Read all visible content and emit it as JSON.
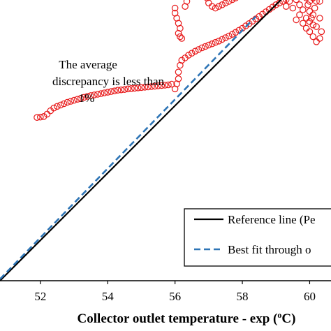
{
  "chart_data": {
    "type": "scatter",
    "xlabel": "Collector outlet temperature - exp (oC)",
    "xlabel_parts": {
      "before": "Collector outlet temperature - exp (",
      "sup": "o",
      "after": "C)"
    },
    "xlim": [
      50.8,
      60.4
    ],
    "ylim": [
      50.8,
      60.4
    ],
    "xticks": [
      "52",
      "54",
      "56",
      "58",
      "60"
    ],
    "xtick_values": [
      52,
      54,
      56,
      58,
      60
    ],
    "annotation": [
      "The average",
      "discrepancy is less than",
      "1%"
    ],
    "legend": {
      "placement": "bottom-right",
      "entries": [
        {
          "label": "Reference line (Pe",
          "style": "solid",
          "color": "#000000"
        },
        {
          "label": "Best fit through o",
          "style": "dashed",
          "color": "#2e75b6"
        }
      ]
    },
    "reference_line": {
      "x": [
        50.8,
        60.4
      ],
      "y": [
        50.8,
        60.4
      ],
      "color": "#000000"
    },
    "best_fit_line": {
      "x": [
        50.8,
        58.4
      ],
      "y": [
        50.85,
        58.65
      ],
      "color": "#2e75b6"
    },
    "marker_color": "#e8191a",
    "series": [
      {
        "points": [
          [
            51.9,
            55.65
          ],
          [
            52.0,
            55.66
          ],
          [
            52.1,
            55.68
          ],
          [
            52.2,
            55.75
          ],
          [
            52.3,
            55.85
          ],
          [
            52.4,
            55.93
          ],
          [
            52.5,
            55.98
          ],
          [
            52.6,
            56.02
          ],
          [
            52.7,
            56.06
          ],
          [
            52.8,
            56.1
          ],
          [
            52.9,
            56.13
          ],
          [
            53.0,
            56.16
          ],
          [
            53.1,
            56.19
          ],
          [
            53.2,
            56.22
          ],
          [
            53.3,
            56.25
          ],
          [
            53.4,
            56.28
          ],
          [
            53.5,
            56.3
          ],
          [
            53.6,
            56.32
          ],
          [
            53.7,
            56.34
          ],
          [
            53.8,
            56.36
          ],
          [
            53.9,
            56.38
          ],
          [
            54.0,
            56.4
          ],
          [
            54.1,
            56.42
          ],
          [
            54.2,
            56.44
          ],
          [
            54.3,
            56.46
          ],
          [
            54.4,
            56.47
          ],
          [
            54.5,
            56.48
          ],
          [
            54.6,
            56.5
          ],
          [
            54.7,
            56.51
          ],
          [
            54.8,
            56.52
          ],
          [
            54.9,
            56.53
          ],
          [
            55.0,
            56.54
          ],
          [
            55.1,
            56.55
          ],
          [
            55.2,
            56.56
          ],
          [
            55.3,
            56.57
          ],
          [
            55.4,
            56.58
          ],
          [
            55.5,
            56.59
          ],
          [
            55.6,
            56.6
          ],
          [
            55.7,
            56.61
          ],
          [
            55.8,
            56.62
          ],
          [
            55.9,
            56.64
          ],
          [
            56.0,
            56.5
          ],
          [
            56.05,
            56.65
          ],
          [
            56.1,
            56.8
          ],
          [
            56.1,
            57.0
          ],
          [
            56.15,
            57.2
          ],
          [
            56.2,
            57.35
          ],
          [
            56.3,
            57.42
          ],
          [
            56.4,
            57.5
          ],
          [
            56.5,
            57.56
          ],
          [
            56.6,
            57.62
          ],
          [
            56.7,
            57.67
          ],
          [
            56.8,
            57.72
          ],
          [
            56.9,
            57.76
          ],
          [
            57.0,
            57.8
          ],
          [
            57.1,
            57.84
          ],
          [
            57.2,
            57.88
          ],
          [
            57.3,
            57.92
          ],
          [
            57.4,
            57.97
          ],
          [
            57.5,
            58.02
          ],
          [
            57.6,
            58.07
          ],
          [
            57.7,
            58.12
          ],
          [
            57.8,
            58.18
          ],
          [
            57.9,
            58.24
          ],
          [
            58.0,
            58.3
          ],
          [
            58.1,
            58.37
          ],
          [
            58.2,
            58.44
          ],
          [
            58.3,
            58.51
          ],
          [
            58.4,
            58.58
          ],
          [
            58.5,
            58.65
          ],
          [
            58.6,
            58.72
          ],
          [
            58.7,
            58.79
          ],
          [
            58.8,
            58.86
          ],
          [
            58.9,
            58.93
          ],
          [
            59.0,
            59.0
          ],
          [
            59.1,
            59.05
          ],
          [
            59.2,
            59.1
          ],
          [
            59.3,
            59.15
          ],
          [
            56.0,
            58.9
          ],
          [
            56.0,
            58.75
          ],
          [
            56.05,
            58.6
          ],
          [
            56.1,
            58.45
          ],
          [
            56.15,
            58.3
          ],
          [
            56.1,
            58.15
          ],
          [
            56.15,
            58.05
          ],
          [
            56.2,
            58.0
          ],
          [
            56.3,
            58.95
          ],
          [
            56.35,
            59.1
          ],
          [
            56.4,
            59.25
          ],
          [
            56.45,
            59.4
          ],
          [
            56.5,
            59.55
          ],
          [
            56.55,
            59.7
          ],
          [
            56.6,
            59.85
          ],
          [
            56.65,
            60.0
          ],
          [
            56.7,
            60.1
          ],
          [
            56.7,
            59.95
          ],
          [
            56.75,
            59.8
          ],
          [
            56.8,
            59.65
          ],
          [
            56.85,
            59.5
          ],
          [
            56.9,
            59.35
          ],
          [
            56.95,
            59.2
          ],
          [
            57.0,
            59.05
          ],
          [
            57.1,
            58.95
          ],
          [
            57.2,
            58.9
          ],
          [
            57.3,
            58.95
          ],
          [
            57.4,
            59.0
          ],
          [
            57.5,
            59.05
          ],
          [
            57.6,
            59.1
          ],
          [
            57.7,
            59.15
          ],
          [
            57.8,
            59.2
          ],
          [
            57.9,
            59.25
          ],
          [
            58.0,
            59.3
          ],
          [
            58.1,
            59.38
          ],
          [
            58.2,
            59.45
          ],
          [
            58.3,
            59.5
          ],
          [
            58.4,
            59.55
          ],
          [
            58.5,
            59.6
          ],
          [
            58.6,
            59.65
          ],
          [
            58.7,
            59.7
          ],
          [
            58.8,
            59.72
          ],
          [
            58.9,
            59.74
          ],
          [
            59.0,
            59.75
          ],
          [
            59.0,
            59.55
          ],
          [
            59.05,
            59.65
          ],
          [
            59.1,
            59.8
          ],
          [
            59.15,
            59.6
          ],
          [
            59.2,
            59.45
          ],
          [
            59.25,
            59.35
          ],
          [
            59.3,
            59.5
          ],
          [
            59.35,
            59.7
          ],
          [
            59.4,
            59.85
          ],
          [
            59.45,
            59.7
          ],
          [
            59.5,
            59.55
          ],
          [
            59.55,
            59.45
          ],
          [
            59.6,
            59.35
          ],
          [
            59.65,
            59.5
          ],
          [
            59.7,
            59.65
          ],
          [
            59.75,
            59.8
          ],
          [
            59.8,
            59.6
          ],
          [
            59.85,
            59.4
          ],
          [
            59.9,
            59.2
          ],
          [
            59.95,
            59.0
          ],
          [
            60.0,
            58.8
          ],
          [
            60.05,
            58.6
          ],
          [
            60.1,
            58.4
          ],
          [
            59.9,
            58.3
          ],
          [
            60.0,
            58.5
          ],
          [
            60.1,
            58.7
          ],
          [
            60.15,
            58.9
          ],
          [
            60.2,
            59.1
          ],
          [
            60.25,
            59.3
          ],
          [
            60.3,
            59.5
          ],
          [
            60.1,
            59.6
          ],
          [
            60.2,
            59.75
          ],
          [
            60.3,
            59.85
          ],
          [
            59.6,
            59.15
          ],
          [
            59.7,
            59.0
          ],
          [
            59.8,
            58.85
          ],
          [
            59.7,
            58.7
          ],
          [
            59.6,
            58.55
          ],
          [
            59.8,
            58.45
          ],
          [
            59.9,
            58.6
          ],
          [
            60.0,
            59.1
          ],
          [
            60.1,
            59.2
          ],
          [
            59.5,
            59.25
          ],
          [
            59.4,
            59.1
          ],
          [
            59.3,
            58.95
          ],
          [
            59.5,
            58.9
          ],
          [
            60.2,
            58.35
          ],
          [
            60.3,
            58.6
          ],
          [
            60.35,
            58.2
          ],
          [
            60.3,
            58.0
          ],
          [
            60.2,
            57.9
          ],
          [
            60.1,
            58.05
          ],
          [
            60.0,
            58.2
          ],
          [
            60.3,
            59.1
          ],
          [
            60.35,
            59.6
          ],
          [
            59.2,
            59.75
          ],
          [
            59.05,
            59.9
          ],
          [
            59.15,
            60.0
          ]
        ]
      }
    ]
  }
}
